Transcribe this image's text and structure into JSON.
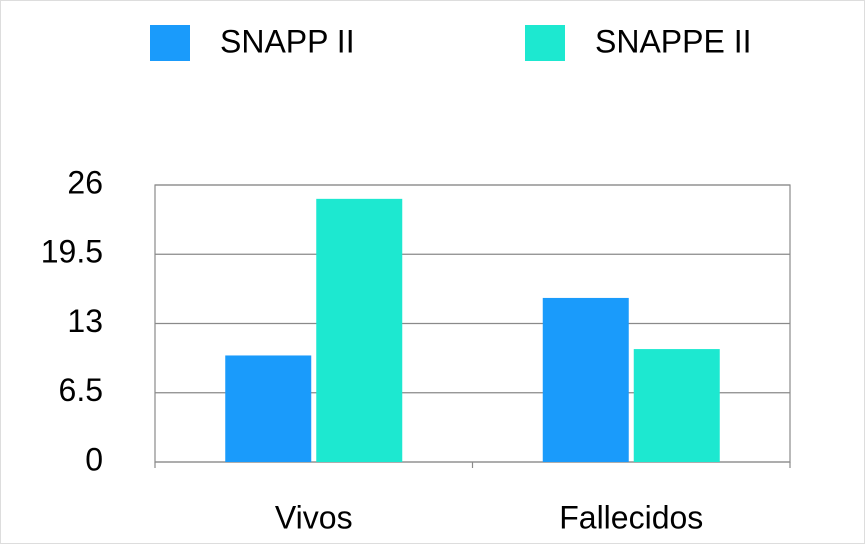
{
  "chart_data": {
    "type": "bar",
    "categories": [
      "Vivos",
      "Fallecidos"
    ],
    "series": [
      {
        "name": "SNAPP II",
        "color": "#1a9bfb",
        "values": [
          10,
          15.4
        ]
      },
      {
        "name": "SNAPPE II",
        "color": "#1de8d0",
        "values": [
          24.7,
          10.6
        ]
      }
    ],
    "ylim": [
      0,
      26
    ],
    "yticks": [
      0,
      6.5,
      13,
      19.5,
      26
    ],
    "grid": true,
    "legend": "top"
  }
}
